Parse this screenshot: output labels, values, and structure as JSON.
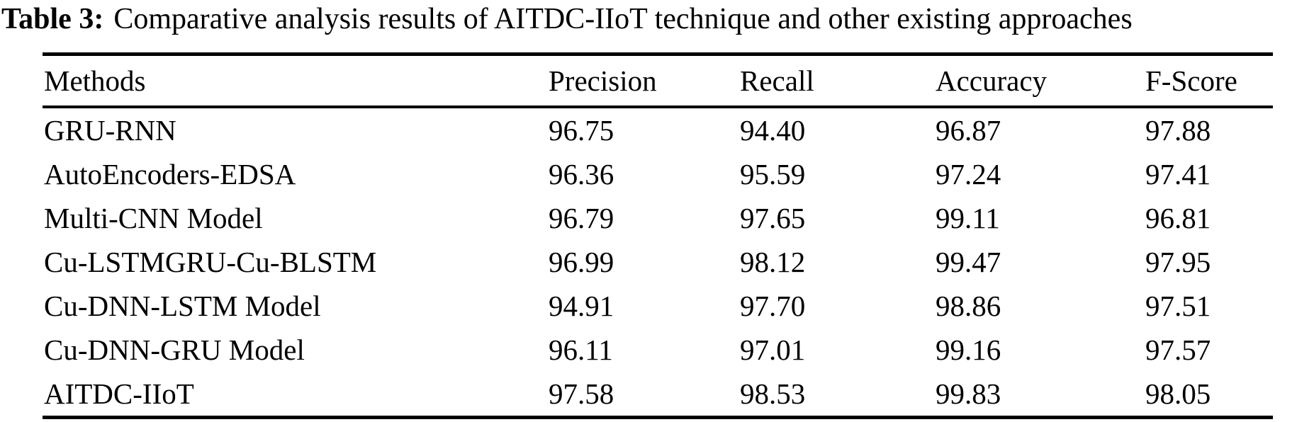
{
  "page": {
    "background_color": "#ffffff",
    "text_color": "#000000",
    "rule_color": "#000000"
  },
  "caption": {
    "label": "Table 3:",
    "text": "Comparative analysis results of AITDC-IIoT technique and other existing approaches"
  },
  "table": {
    "columns": [
      {
        "key": "method",
        "label": "Methods"
      },
      {
        "key": "precision",
        "label": "Precision"
      },
      {
        "key": "recall",
        "label": "Recall"
      },
      {
        "key": "accuracy",
        "label": "Accuracy"
      },
      {
        "key": "f_score",
        "label": "F-Score"
      }
    ],
    "rows": [
      {
        "method": "GRU-RNN",
        "precision": "96.75",
        "recall": "94.40",
        "accuracy": "96.87",
        "f_score": "97.88"
      },
      {
        "method": "AutoEncoders-EDSA",
        "precision": "96.36",
        "recall": "95.59",
        "accuracy": "97.24",
        "f_score": "97.41"
      },
      {
        "method": "Multi-CNN Model",
        "precision": "96.79",
        "recall": "97.65",
        "accuracy": "99.11",
        "f_score": "96.81"
      },
      {
        "method": "Cu-LSTMGRU-Cu-BLSTM",
        "precision": "96.99",
        "recall": "98.12",
        "accuracy": "99.47",
        "f_score": "97.95"
      },
      {
        "method": "Cu-DNN-LSTM Model",
        "precision": "94.91",
        "recall": "97.70",
        "accuracy": "98.86",
        "f_score": "97.51"
      },
      {
        "method": "Cu-DNN-GRU Model",
        "precision": "96.11",
        "recall": "97.01",
        "accuracy": "99.16",
        "f_score": "97.57"
      },
      {
        "method": "AITDC-IIoT",
        "precision": "97.58",
        "recall": "98.53",
        "accuracy": "99.83",
        "f_score": "98.05"
      }
    ]
  },
  "chart_data": {
    "type": "table",
    "title": "Table 3: Comparative analysis results of AITDC-IIoT technique and other existing approaches",
    "columns": [
      "Methods",
      "Precision",
      "Recall",
      "Accuracy",
      "F-Score"
    ],
    "rows": [
      [
        "GRU-RNN",
        96.75,
        94.4,
        96.87,
        97.88
      ],
      [
        "AutoEncoders-EDSA",
        96.36,
        95.59,
        97.24,
        97.41
      ],
      [
        "Multi-CNN Model",
        96.79,
        97.65,
        99.11,
        96.81
      ],
      [
        "Cu-LSTMGRU-Cu-BLSTM",
        96.99,
        98.12,
        99.47,
        97.95
      ],
      [
        "Cu-DNN-LSTM Model",
        94.91,
        97.7,
        98.86,
        97.51
      ],
      [
        "Cu-DNN-GRU Model",
        96.11,
        97.01,
        99.16,
        97.57
      ],
      [
        "AITDC-IIoT",
        97.58,
        98.53,
        99.83,
        98.05
      ]
    ]
  }
}
